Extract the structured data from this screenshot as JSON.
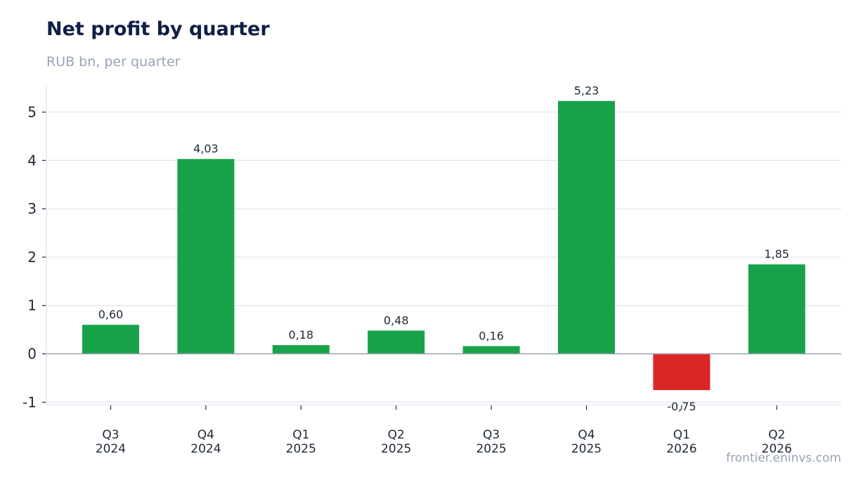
{
  "header": {
    "title": "Net profit by quarter",
    "subtitle": "RUB bn, per quarter"
  },
  "footer": {
    "source": "frontier.eninvs.com"
  },
  "colors": {
    "positive": "#18a34a",
    "negative": "#dc2626",
    "grid": "#e5e9f0",
    "zero_line": "#9aa3ad"
  },
  "chart_data": {
    "type": "bar",
    "title": "Net profit by quarter",
    "subtitle": "RUB bn, per quarter",
    "xlabel": "",
    "ylabel": "",
    "categories": [
      [
        "Q3",
        "2024"
      ],
      [
        "Q4",
        "2024"
      ],
      [
        "Q1",
        "2025"
      ],
      [
        "Q2",
        "2025"
      ],
      [
        "Q3",
        "2025"
      ],
      [
        "Q4",
        "2025"
      ],
      [
        "Q1",
        "2026"
      ],
      [
        "Q2",
        "2026"
      ]
    ],
    "values": [
      0.6,
      4.03,
      0.18,
      0.48,
      0.16,
      5.23,
      -0.75,
      1.85
    ],
    "value_labels": [
      "0,60",
      "4,03",
      "0,18",
      "0,48",
      "0,16",
      "5,23",
      "-0,75",
      "1,85"
    ],
    "yticks": [
      -1,
      0,
      1,
      2,
      3,
      4,
      5
    ],
    "ylim": [
      -1.05,
      5.55
    ],
    "grid": true,
    "legend": "none"
  }
}
